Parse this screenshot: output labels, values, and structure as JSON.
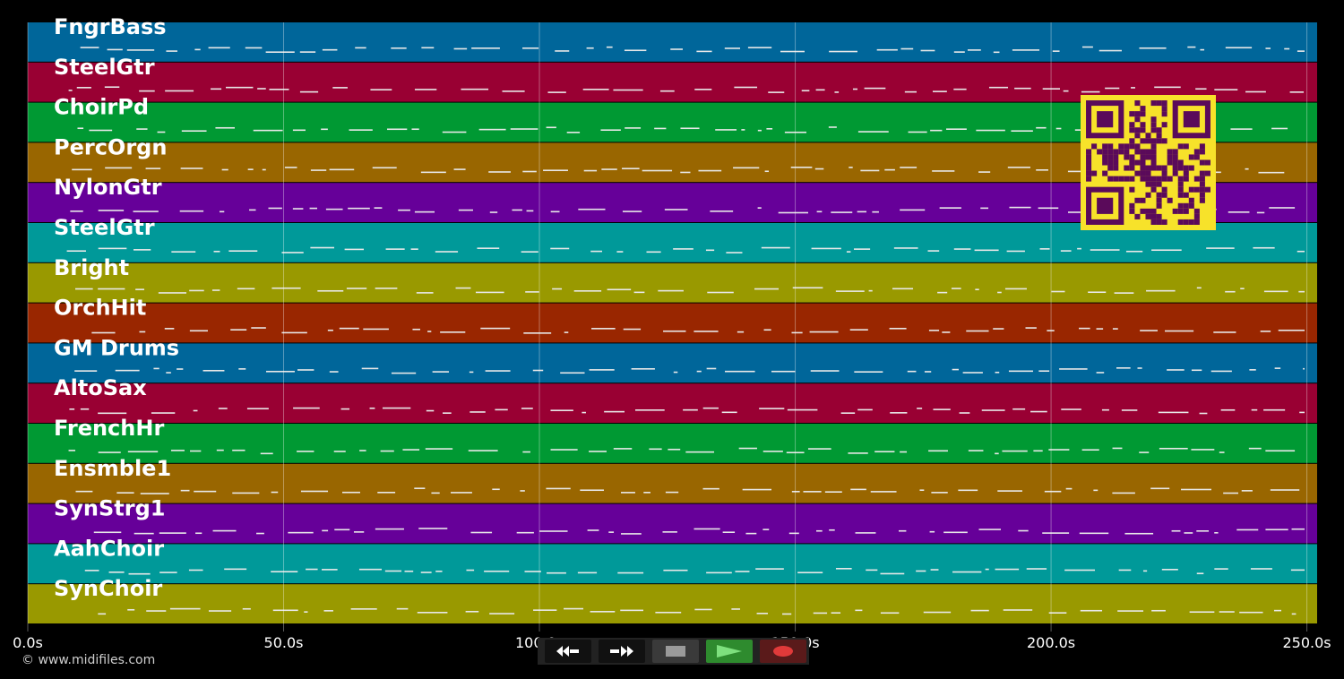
{
  "tracks": [
    {
      "name": "FngrBass",
      "color": "#00669a"
    },
    {
      "name": "SteelGtr",
      "color": "#990033"
    },
    {
      "name": "ChoirPd",
      "color": "#009933"
    },
    {
      "name": "PercOrgn",
      "color": "#996600"
    },
    {
      "name": "NylonGtr",
      "color": "#660099"
    },
    {
      "name": "SteelGtr",
      "color": "#009999"
    },
    {
      "name": "Bright",
      "color": "#999900"
    },
    {
      "name": "OrchHit",
      "color": "#992600"
    },
    {
      "name": "GM Drums",
      "color": "#00669a"
    },
    {
      "name": "AltoSax",
      "color": "#990033"
    },
    {
      "name": "FrenchHr",
      "color": "#009933"
    },
    {
      "name": "Ensmble1",
      "color": "#996600"
    },
    {
      "name": "SynStrg1",
      "color": "#660099"
    },
    {
      "name": "AahChoir",
      "color": "#009999"
    },
    {
      "name": "SynChoir",
      "color": "#999900"
    }
  ],
  "timeline": {
    "duration_s": 252,
    "ticks": [
      {
        "value": 0,
        "label": "0.0s"
      },
      {
        "value": 50,
        "label": "50.0s"
      },
      {
        "value": 100,
        "label": "100.0s"
      },
      {
        "value": 150,
        "label": "150.0s"
      },
      {
        "value": 200,
        "label": "200.0s"
      },
      {
        "value": 250,
        "label": "250.0s"
      }
    ]
  },
  "copyright": "© www.midifiles.com",
  "transport": {
    "rewind_icon": "rewind-icon",
    "fast_forward_icon": "fast-forward-icon",
    "stop_icon": "stop-icon",
    "play_icon": "play-icon",
    "record_icon": "record-icon",
    "play_color": "#2e8b2e",
    "record_color": "#e03a3a"
  },
  "qr": {
    "color": "#5a0a5a",
    "background": "#f7e22a"
  }
}
